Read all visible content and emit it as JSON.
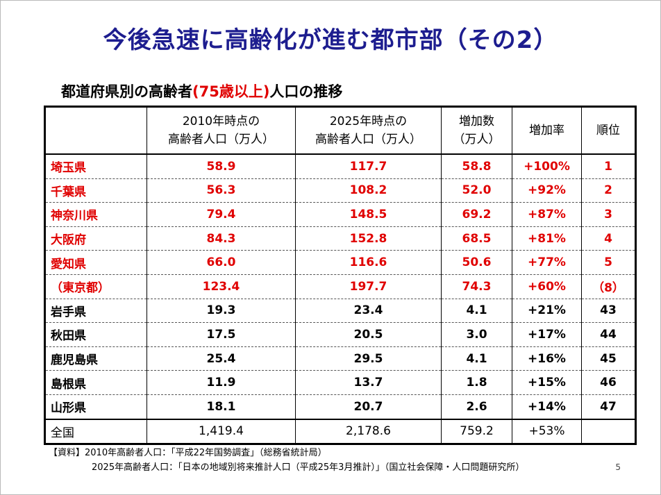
{
  "slide": {
    "title": "今後急速に高齢化が進む都市部（その2）",
    "subtitle_before": "都道府県別の高齢者",
    "subtitle_red": "(75歳以上)",
    "subtitle_after": "人口の推移",
    "page_number": "5"
  },
  "table": {
    "headers": {
      "col1_line1": "2010年時点の",
      "col1_line2": "高齢者人口（万人）",
      "col2_line1": "2025年時点の",
      "col2_line2": "高齢者人口（万人）",
      "col3_line1": "増加数",
      "col3_line2": "（万人）",
      "col4": "増加率",
      "col5": "順位"
    },
    "rows": [
      {
        "pref": "埼玉県",
        "p2010": "58.9",
        "p2025": "117.7",
        "inc": "58.8",
        "rate": "+100%",
        "rank": "1"
      },
      {
        "pref": "千葉県",
        "p2010": "56.3",
        "p2025": "108.2",
        "inc": "52.0",
        "rate": "+92%",
        "rank": "2"
      },
      {
        "pref": "神奈川県",
        "p2010": "79.4",
        "p2025": "148.5",
        "inc": "69.2",
        "rate": "+87%",
        "rank": "3"
      },
      {
        "pref": "大阪府",
        "p2010": "84.3",
        "p2025": "152.8",
        "inc": "68.5",
        "rate": "+81%",
        "rank": "4"
      },
      {
        "pref": "愛知県",
        "p2010": "66.0",
        "p2025": "116.6",
        "inc": "50.6",
        "rate": "+77%",
        "rank": "5"
      },
      {
        "pref": "（東京都）",
        "p2010": "123.4",
        "p2025": "197.7",
        "inc": "74.3",
        "rate": "+60%",
        "rank": "（8）"
      },
      {
        "pref": "岩手県",
        "p2010": "19.3",
        "p2025": "23.4",
        "inc": "4.1",
        "rate": "+21%",
        "rank": "43"
      },
      {
        "pref": "秋田県",
        "p2010": "17.5",
        "p2025": "20.5",
        "inc": "3.0",
        "rate": "+17%",
        "rank": "44"
      },
      {
        "pref": "鹿児島県",
        "p2010": "25.4",
        "p2025": "29.5",
        "inc": "4.1",
        "rate": "+16%",
        "rank": "45"
      },
      {
        "pref": "島根県",
        "p2010": "11.9",
        "p2025": "13.7",
        "inc": "1.8",
        "rate": "+15%",
        "rank": "46"
      },
      {
        "pref": "山形県",
        "p2010": "18.1",
        "p2025": "20.7",
        "inc": "2.6",
        "rate": "+14%",
        "rank": "47"
      }
    ],
    "total": {
      "pref": "全国",
      "p2010": "1,419.4",
      "p2025": "2,178.6",
      "inc": "759.2",
      "rate": "+53%",
      "rank": ""
    }
  },
  "notes": {
    "line1": "【資料】2010年高齢者人口：「平成22年国勢調査」（総務省統計局）",
    "line2": "2025年高齢者人口：「日本の地域別将来推計人口（平成25年3月推計）」（国立社会保障・人口問題研究所）"
  },
  "colors": {
    "title": "#1d1d8f",
    "highlight": "#e00000"
  }
}
